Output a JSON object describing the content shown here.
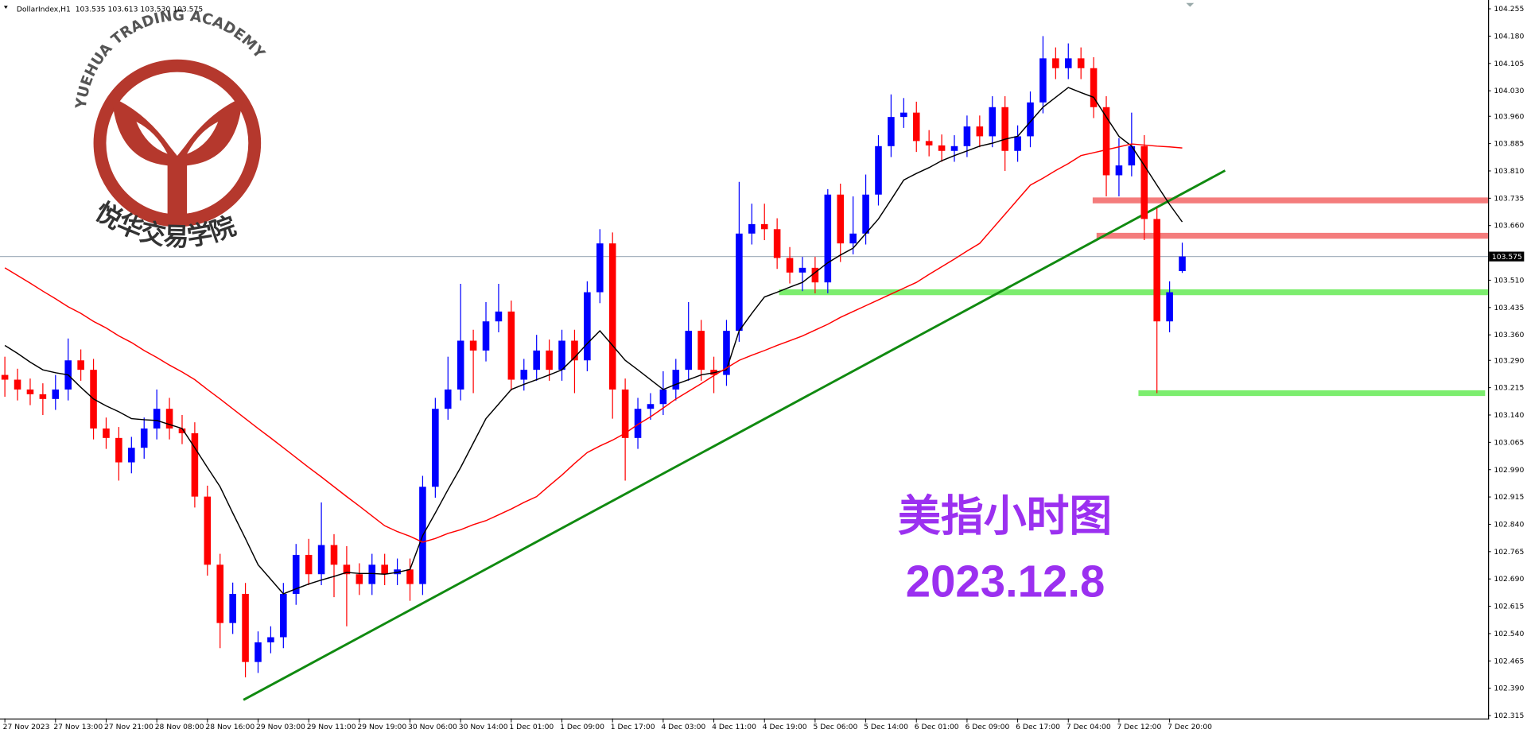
{
  "chart_data": {
    "type": "candlestick",
    "title": "DollarIndex,H1  103.535 103.613 103.530 103.575",
    "x": [
      "27 Nov 2023",
      null,
      null,
      null,
      "27 Nov 13:00",
      null,
      null,
      null,
      "27 Nov 21:00",
      null,
      null,
      null,
      "28 Nov 08:00",
      null,
      null,
      null,
      "28 Nov 16:00",
      null,
      null,
      null,
      "29 Nov 03:00",
      null,
      null,
      null,
      "29 Nov 11:00",
      null,
      null,
      null,
      "29 Nov 19:00",
      null,
      null,
      null,
      "30 Nov 06:00",
      null,
      null,
      null,
      "30 Nov 14:00",
      null,
      null,
      null,
      "1 Dec 01:00",
      null,
      null,
      null,
      "1 Dec 09:00",
      null,
      null,
      null,
      "1 Dec 17:00",
      null,
      null,
      null,
      "4 Dec 03:00",
      null,
      null,
      null,
      "4 Dec 11:00",
      null,
      null,
      null,
      "4 Dec 19:00",
      null,
      null,
      null,
      "5 Dec 06:00",
      null,
      null,
      null,
      "5 Dec 14:00",
      null,
      null,
      null,
      "6 Dec 01:00",
      null,
      null,
      null,
      "6 Dec 09:00",
      null,
      null,
      null,
      "6 Dec 17:00",
      null,
      null,
      null,
      "7 Dec 04:00",
      null,
      null,
      null,
      "7 Dec 12:00",
      null,
      null,
      null,
      "7 Dec 20:00",
      null
    ],
    "open": [
      103.25,
      103.237,
      103.21,
      103.197,
      103.184,
      103.21,
      103.29,
      103.264,
      103.103,
      103.077,
      103.01,
      103.05,
      103.103,
      103.157,
      103.103,
      103.09,
      102.916,
      102.729,
      102.569,
      102.649,
      102.462,
      102.516,
      102.53,
      102.649,
      102.756,
      102.703,
      102.783,
      102.729,
      102.703,
      102.676,
      102.729,
      102.703,
      102.716,
      102.676,
      102.943,
      103.157,
      103.21,
      103.344,
      103.317,
      103.397,
      103.424,
      103.237,
      103.264,
      103.317,
      103.264,
      103.344,
      103.29,
      103.477,
      103.611,
      103.21,
      103.077,
      103.157,
      103.17,
      103.21,
      103.264,
      103.371,
      103.264,
      103.25,
      103.371,
      103.638,
      103.664,
      103.65,
      103.571,
      103.531,
      103.544,
      103.504,
      103.745,
      103.611,
      103.638,
      103.745,
      103.878,
      103.958,
      103.97,
      103.892,
      103.88,
      103.865,
      103.878,
      103.932,
      103.905,
      103.985,
      103.865,
      103.905,
      103.998,
      104.119,
      104.092,
      104.119,
      104.092,
      103.985,
      103.798,
      103.825,
      103.878,
      103.678,
      103.397,
      103.535
    ],
    "high": [
      103.3,
      103.267,
      103.24,
      103.227,
      103.25,
      103.35,
      103.32,
      103.294,
      103.133,
      103.107,
      103.08,
      103.133,
      103.21,
      103.187,
      103.14,
      103.12,
      102.946,
      102.759,
      102.68,
      102.679,
      102.546,
      102.56,
      102.679,
      102.786,
      102.8,
      102.9,
      102.813,
      102.78,
      102.733,
      102.759,
      102.759,
      102.746,
      102.746,
      102.973,
      103.187,
      103.3,
      103.5,
      103.374,
      103.45,
      103.5,
      103.454,
      103.294,
      103.36,
      103.347,
      103.374,
      103.374,
      103.507,
      103.65,
      103.641,
      103.24,
      103.187,
      103.2,
      103.26,
      103.294,
      103.45,
      103.401,
      103.3,
      103.401,
      103.78,
      103.72,
      103.72,
      103.68,
      103.601,
      103.574,
      103.574,
      103.76,
      103.775,
      103.74,
      103.8,
      103.908,
      104.02,
      104.01,
      104.0,
      103.922,
      103.91,
      103.908,
      103.962,
      103.962,
      104.015,
      104.015,
      103.935,
      104.028,
      104.18,
      104.149,
      104.16,
      104.149,
      104.122,
      104.015,
      103.9,
      103.97,
      103.908,
      103.708,
      103.507,
      103.613
    ],
    "low": [
      103.19,
      103.18,
      103.167,
      103.14,
      103.154,
      103.18,
      103.234,
      103.073,
      103.047,
      102.96,
      102.98,
      103.02,
      103.073,
      103.073,
      103.06,
      102.886,
      102.699,
      102.5,
      102.539,
      102.42,
      102.432,
      102.486,
      102.5,
      102.619,
      102.673,
      102.673,
      102.64,
      102.56,
      102.646,
      102.646,
      102.673,
      102.673,
      102.63,
      102.646,
      102.913,
      103.127,
      103.18,
      103.2,
      103.287,
      103.367,
      103.207,
      103.207,
      103.234,
      103.234,
      103.234,
      103.2,
      103.26,
      103.447,
      103.13,
      102.96,
      103.047,
      103.127,
      103.14,
      103.18,
      103.234,
      103.234,
      103.2,
      103.22,
      103.341,
      103.608,
      103.62,
      103.541,
      103.501,
      103.48,
      103.474,
      103.474,
      103.56,
      103.581,
      103.608,
      103.715,
      103.848,
      103.928,
      103.862,
      103.85,
      103.835,
      103.835,
      103.848,
      103.875,
      103.875,
      103.81,
      103.835,
      103.875,
      103.968,
      104.062,
      104.062,
      104.062,
      103.955,
      103.74,
      103.74,
      103.795,
      103.62,
      103.2,
      103.367,
      103.53
    ],
    "close": [
      103.237,
      103.21,
      103.197,
      103.184,
      103.21,
      103.29,
      103.264,
      103.103,
      103.077,
      103.01,
      103.05,
      103.103,
      103.157,
      103.103,
      103.09,
      102.916,
      102.729,
      102.569,
      102.649,
      102.462,
      102.516,
      102.53,
      102.649,
      102.756,
      102.703,
      102.783,
      102.729,
      102.703,
      102.676,
      102.729,
      102.703,
      102.716,
      102.676,
      102.943,
      103.157,
      103.21,
      103.344,
      103.317,
      103.397,
      103.424,
      103.237,
      103.264,
      103.317,
      103.264,
      103.344,
      103.29,
      103.477,
      103.611,
      103.21,
      103.077,
      103.157,
      103.17,
      103.21,
      103.264,
      103.371,
      103.264,
      103.25,
      103.371,
      103.638,
      103.664,
      103.65,
      103.571,
      103.531,
      103.544,
      103.504,
      103.745,
      103.611,
      103.638,
      103.745,
      103.878,
      103.958,
      103.97,
      103.892,
      103.88,
      103.865,
      103.878,
      103.932,
      103.905,
      103.985,
      103.865,
      103.905,
      103.998,
      104.119,
      104.092,
      104.119,
      104.092,
      103.985,
      103.798,
      103.825,
      103.878,
      103.678,
      103.397,
      103.477,
      103.575
    ],
    "up_color": "#0000ff",
    "down_color": "#ff0000",
    "moving_averages": [
      {
        "color": "#000000",
        "values": [
          103.331,
          103.309,
          103.285,
          103.264,
          103.256,
          103.25,
          103.216,
          103.184,
          103.165,
          103.149,
          103.13,
          103.127,
          103.125,
          103.114,
          103.103,
          103.05,
          102.996,
          102.943,
          102.871,
          102.801,
          102.729,
          102.689,
          102.649,
          102.663,
          102.676,
          102.687,
          102.697,
          102.708,
          102.705,
          102.705,
          102.703,
          102.708,
          102.716,
          102.809,
          102.871,
          102.935,
          102.996,
          103.063,
          103.13,
          103.17,
          103.21,
          103.224,
          103.237,
          103.25,
          103.264,
          103.298,
          103.336,
          103.371,
          103.331,
          103.29,
          103.264,
          103.237,
          103.21,
          103.224,
          103.237,
          103.25,
          103.256,
          103.264,
          103.371,
          103.419,
          103.464,
          103.477,
          103.491,
          103.504,
          103.531,
          103.558,
          103.579,
          103.598,
          103.638,
          103.678,
          103.731,
          103.785,
          103.803,
          103.819,
          103.838,
          103.852,
          103.865,
          103.878,
          103.886,
          103.897,
          103.905,
          103.945,
          103.985,
          104.012,
          104.039,
          104.025,
          104.012,
          103.958,
          103.905,
          103.878,
          103.825,
          103.771,
          103.718,
          103.67
        ]
      },
      {
        "color": "#ff0000",
        "values": [
          103.544,
          103.523,
          103.502,
          103.48,
          103.459,
          103.437,
          103.419,
          103.397,
          103.379,
          103.357,
          103.339,
          103.317,
          103.298,
          103.277,
          103.258,
          103.237,
          103.21,
          103.184,
          103.157,
          103.13,
          103.103,
          103.077,
          103.05,
          103.023,
          102.996,
          102.97,
          102.943,
          102.916,
          102.89,
          102.863,
          102.836,
          102.82,
          102.807,
          102.791,
          102.801,
          102.815,
          102.825,
          102.839,
          102.85,
          102.866,
          102.882,
          102.9,
          102.916,
          102.946,
          102.975,
          103.007,
          103.037,
          103.055,
          103.071,
          103.09,
          103.114,
          103.135,
          103.159,
          103.184,
          103.205,
          103.226,
          103.248,
          103.269,
          103.29,
          103.304,
          103.317,
          103.331,
          103.344,
          103.357,
          103.373,
          103.389,
          103.408,
          103.424,
          103.44,
          103.456,
          103.472,
          103.488,
          103.504,
          103.526,
          103.547,
          103.568,
          103.59,
          103.611,
          103.651,
          103.691,
          103.731,
          103.771,
          103.79,
          103.811,
          103.83,
          103.852,
          103.86,
          103.868,
          103.876,
          103.884,
          103.881,
          103.878,
          103.876,
          103.873
        ]
      }
    ],
    "ylim": [
      102.315,
      104.255
    ],
    "yticks": [
      104.255,
      {
        "value": 104.18,
        "label": "104.180"
      },
      104.105,
      {
        "value": 104.03,
        "label": "104.030"
      },
      {
        "value": 103.96,
        "label": "103.960"
      },
      103.885,
      {
        "value": 103.81,
        "label": "103.810"
      },
      103.735,
      {
        "value": 103.66,
        "label": "103.660"
      },
      {
        "value": 103.51,
        "label": "103.510"
      },
      103.435,
      {
        "value": 103.36,
        "label": "103.360"
      },
      {
        "value": 103.29,
        "label": "103.290"
      },
      103.215,
      {
        "value": 103.14,
        "label": "103.140"
      },
      103.065,
      {
        "value": 102.99,
        "label": "102.990"
      },
      102.915,
      {
        "value": 102.84,
        "label": "102.840"
      },
      102.765,
      {
        "value": 102.69,
        "label": "102.690"
      },
      102.615,
      {
        "value": 102.54,
        "label": "102.540"
      },
      102.465,
      {
        "value": 102.39,
        "label": "102.390"
      },
      102.315
    ],
    "last_price": 103.575,
    "levels": [
      {
        "value": 103.729,
        "color": "#f47c7c"
      },
      {
        "value": 103.632,
        "color": "#f47c7c"
      },
      {
        "value": 103.477,
        "color": "#7ced6e"
      },
      {
        "value": 103.2,
        "color": "#7ced6e"
      }
    ],
    "trendline": {
      "color": "#108a10",
      "values": [
        102.358,
        103.811
      ]
    },
    "annotations": [
      "美指小时图",
      "2023.12.8"
    ],
    "grid": false
  },
  "logo": {
    "text": "YUEHUA TRADING ACADEMY",
    "name": "悦华交易学院"
  }
}
